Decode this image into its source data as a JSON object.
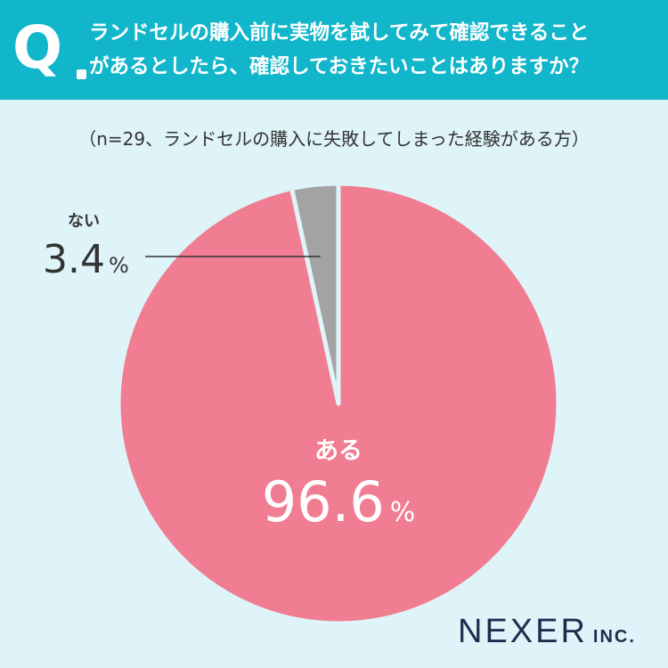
{
  "header": {
    "q_letter": "Q",
    "question_line1": "ランドセルの購入前に実物を試してみて確認できること",
    "question_line2": "があるとしたら、確認しておきたいことはありますか？"
  },
  "note": "（n=29、ランドセルの購入に失敗してしまった経験がある方）",
  "chart_data": {
    "type": "pie",
    "title": "",
    "categories": [
      "ある",
      "ない"
    ],
    "values": [
      96.6,
      3.4
    ],
    "unit": "%",
    "value_labels": [
      "96.6",
      "3.4"
    ],
    "colors": [
      "#f07d92",
      "#a3a3a3"
    ],
    "start_angle": "12 o'clock",
    "direction": "clockwise"
  },
  "brand": {
    "name": "NEXER",
    "suffix": "INC."
  }
}
